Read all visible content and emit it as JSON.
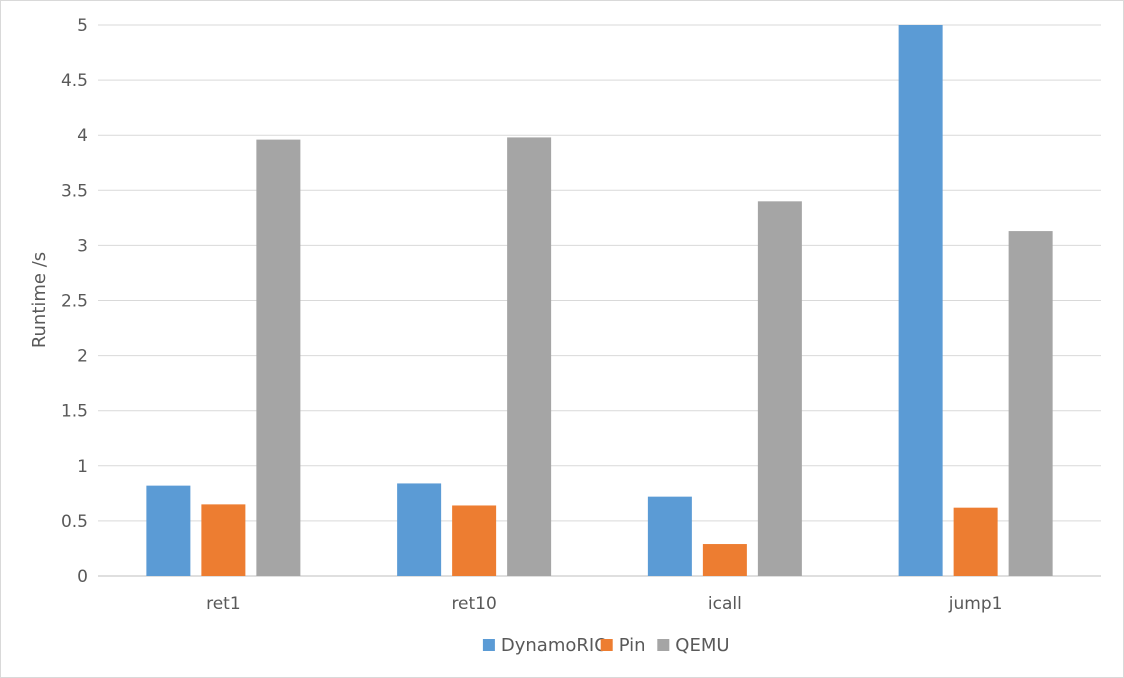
{
  "chart_data": {
    "type": "bar",
    "title": "",
    "xlabel": "",
    "ylabel": "Runtime /s",
    "ylim": [
      0,
      5
    ],
    "yticks": [
      "0",
      "0.5",
      "1",
      "1.5",
      "2",
      "2.5",
      "3",
      "3.5",
      "4",
      "4.5",
      "5"
    ],
    "categories": [
      "ret1",
      "ret10",
      "icall",
      "jump1"
    ],
    "series": [
      {
        "name": "DynamoRIO",
        "color": "#5b9bd5",
        "values": [
          0.82,
          0.84,
          0.72,
          5.0
        ]
      },
      {
        "name": "Pin",
        "color": "#ed7d31",
        "values": [
          0.65,
          0.64,
          0.29,
          0.62
        ]
      },
      {
        "name": "QEMU",
        "color": "#a5a5a5",
        "values": [
          3.96,
          3.98,
          3.4,
          3.13
        ]
      }
    ],
    "grid": true,
    "legend_position": "bottom"
  }
}
